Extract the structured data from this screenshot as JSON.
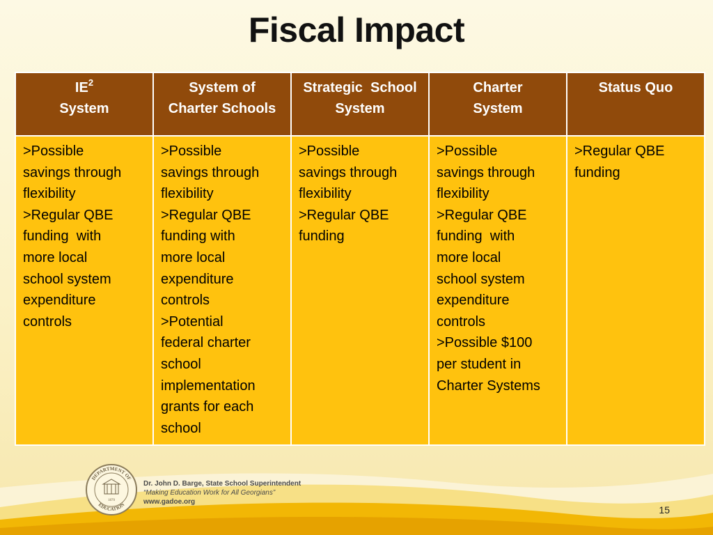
{
  "title": "Fiscal Impact",
  "table": {
    "headers": [
      {
        "lines": [
          "IE",
          "System"
        ],
        "superscript": "2"
      },
      {
        "lines": [
          "System of",
          "Charter Schools"
        ]
      },
      {
        "lines": [
          "Strategic  School",
          "System"
        ]
      },
      {
        "lines": [
          "Charter",
          "System"
        ]
      },
      {
        "lines": [
          "Status Quo"
        ]
      }
    ],
    "rows": [
      [
        [
          "&gt;Possible",
          "savings through",
          "flexibility",
          "&gt;Regular QBE",
          "funding  with",
          "more local",
          "school system",
          "expenditure",
          "controls"
        ],
        [
          "&gt;Possible",
          "savings through",
          "flexibility",
          "&gt;Regular QBE",
          "funding with",
          "more local",
          "expenditure",
          "controls",
          "&gt;Potential",
          "federal charter",
          "school",
          "implementation",
          "grants for each",
          "school"
        ],
        [
          "&gt;Possible",
          "savings through",
          "flexibility",
          "&gt;Regular QBE",
          "funding"
        ],
        [
          "&gt;Possible",
          "savings through",
          "flexibility",
          "&gt;Regular QBE",
          "funding  with",
          "more local",
          "school system",
          "expenditure",
          "controls",
          "&gt;Possible $100",
          "per student in",
          "Charter Systems"
        ],
        [
          "&gt;Regular QBE",
          "funding"
        ]
      ]
    ]
  },
  "footer": {
    "superintendent": "Dr. John D. Barge, State School Superintendent",
    "motto": "“Making Education Work for All Georgians”",
    "website": "www.gadoe.org",
    "seal_text_top": "DEPARTMENT OF",
    "seal_text_bottom": "EDUCATION",
    "seal_year": "1870"
  },
  "page_number": "15",
  "colors": {
    "header_bg": "#904a0b",
    "cell_bg": "#ffc20e",
    "swoosh": "#f2b705"
  }
}
